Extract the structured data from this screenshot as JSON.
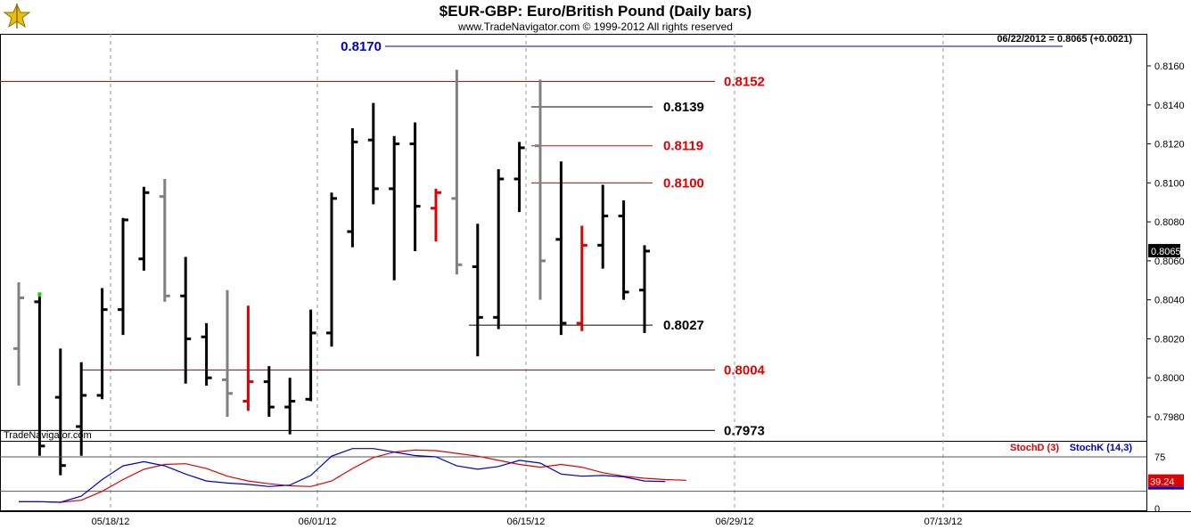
{
  "header": {
    "title": "$EUR-GBP:  Euro/British Pound  (Daily bars)",
    "subtitle": "www.TradeNavigator.com © 1999-2012 All rights reserved",
    "last_readout": "06/22/2012 = 0.8065 (+0.0021)",
    "watermark": "TradeNavigator.com"
  },
  "colors": {
    "up": "#000000",
    "neutral": "#808080",
    "down": "#e00000",
    "stoch_d": "#e00000",
    "stoch_k": "#0000c8",
    "level_blue": "#0000c8"
  },
  "chart_data": [
    {
      "type": "ohlc",
      "x_dates": [
        "05/18/12",
        "06/01/12",
        "06/15/12",
        "06/29/12",
        "07/13/12"
      ],
      "ylim": [
        0.797,
        0.817
      ],
      "y_ticks": [
        "0.7980",
        "0.8000",
        "0.8020",
        "0.8040",
        "0.8060",
        "0.8080",
        "0.8100",
        "0.8120",
        "0.8140",
        "0.8160"
      ],
      "last_price_label": "0.8065",
      "bars": [
        {
          "o": 0.8015,
          "h": 0.8049,
          "l": 0.7996,
          "c": 0.8041,
          "color": "neutral"
        },
        {
          "o": 0.8039,
          "h": 0.8042,
          "l": 0.796,
          "c": 0.7965,
          "color": "up"
        },
        {
          "o": 0.799,
          "h": 0.8015,
          "l": 0.795,
          "c": 0.7955,
          "color": "up"
        },
        {
          "o": 0.7975,
          "h": 0.8008,
          "l": 0.796,
          "c": 0.7991,
          "color": "up"
        },
        {
          "o": 0.7991,
          "h": 0.8046,
          "l": 0.7989,
          "c": 0.8035,
          "color": "up"
        },
        {
          "o": 0.8035,
          "h": 0.8082,
          "l": 0.8022,
          "c": 0.8081,
          "color": "up"
        },
        {
          "o": 0.8061,
          "h": 0.8098,
          "l": 0.8055,
          "c": 0.8095,
          "color": "up"
        },
        {
          "o": 0.8093,
          "h": 0.8102,
          "l": 0.8039,
          "c": 0.8042,
          "color": "neutral"
        },
        {
          "o": 0.8042,
          "h": 0.8062,
          "l": 0.7997,
          "c": 0.802,
          "color": "up"
        },
        {
          "o": 0.8021,
          "h": 0.8028,
          "l": 0.7996,
          "c": 0.8,
          "color": "up"
        },
        {
          "o": 0.7999,
          "h": 0.8045,
          "l": 0.798,
          "c": 0.7992,
          "color": "neutral"
        },
        {
          "o": 0.7988,
          "h": 0.8037,
          "l": 0.7983,
          "c": 0.7998,
          "color": "down"
        },
        {
          "o": 0.7998,
          "h": 0.8006,
          "l": 0.798,
          "c": 0.7985,
          "color": "up"
        },
        {
          "o": 0.7985,
          "h": 0.8,
          "l": 0.7971,
          "c": 0.7988,
          "color": "up"
        },
        {
          "o": 0.7989,
          "h": 0.8035,
          "l": 0.7988,
          "c": 0.8023,
          "color": "up"
        },
        {
          "o": 0.8023,
          "h": 0.8095,
          "l": 0.8016,
          "c": 0.8092,
          "color": "up"
        },
        {
          "o": 0.8075,
          "h": 0.8128,
          "l": 0.8067,
          "c": 0.8121,
          "color": "up"
        },
        {
          "o": 0.8122,
          "h": 0.8141,
          "l": 0.8089,
          "c": 0.8097,
          "color": "up"
        },
        {
          "o": 0.8097,
          "h": 0.8124,
          "l": 0.805,
          "c": 0.812,
          "color": "up"
        },
        {
          "o": 0.812,
          "h": 0.8131,
          "l": 0.8065,
          "c": 0.8088,
          "color": "up"
        },
        {
          "o": 0.8087,
          "h": 0.8097,
          "l": 0.807,
          "c": 0.8095,
          "color": "down"
        },
        {
          "o": 0.8092,
          "h": 0.8158,
          "l": 0.8053,
          "c": 0.8058,
          "color": "neutral"
        },
        {
          "o": 0.8057,
          "h": 0.8079,
          "l": 0.8011,
          "c": 0.8031,
          "color": "up"
        },
        {
          "o": 0.8031,
          "h": 0.8107,
          "l": 0.8025,
          "c": 0.8102,
          "color": "up"
        },
        {
          "o": 0.8102,
          "h": 0.8121,
          "l": 0.8085,
          "c": 0.8118,
          "color": "up"
        },
        {
          "o": 0.8119,
          "h": 0.8153,
          "l": 0.804,
          "c": 0.806,
          "color": "neutral"
        },
        {
          "o": 0.8071,
          "h": 0.8111,
          "l": 0.8022,
          "c": 0.8028,
          "color": "up"
        },
        {
          "o": 0.8028,
          "h": 0.8078,
          "l": 0.8024,
          "c": 0.8068,
          "color": "down"
        },
        {
          "o": 0.8068,
          "h": 0.8099,
          "l": 0.8056,
          "c": 0.8083,
          "color": "up"
        },
        {
          "o": 0.8083,
          "h": 0.8091,
          "l": 0.804,
          "c": 0.8044,
          "color": "up"
        },
        {
          "o": 0.8045,
          "h": 0.8068,
          "l": 0.8023,
          "c": 0.8065,
          "color": "up"
        }
      ],
      "levels": [
        {
          "label": "0.8170",
          "value": 0.817,
          "color": "blue",
          "label_side": "left"
        },
        {
          "label": "0.8152",
          "value": 0.8152,
          "color": "red",
          "label_side": "right"
        },
        {
          "label": "0.8139",
          "value": 0.8139,
          "color": "black",
          "label_side": "right"
        },
        {
          "label": "0.8119",
          "value": 0.8119,
          "color": "red",
          "label_side": "right"
        },
        {
          "label": "0.8100",
          "value": 0.81,
          "color": "red",
          "label_side": "right"
        },
        {
          "label": "0.8027",
          "value": 0.8027,
          "color": "black",
          "label_side": "right"
        },
        {
          "label": "0.8004",
          "value": 0.8004,
          "color": "red",
          "label_side": "right"
        },
        {
          "label": "0.7973",
          "value": 0.7973,
          "color": "black",
          "label_side": "right"
        }
      ]
    },
    {
      "type": "line",
      "ylim": [
        0,
        100
      ],
      "y_ticks": [
        "75",
        "0"
      ],
      "reference_lines": [
        75,
        25
      ],
      "legend": [
        "StochD (3)",
        "StochK (14,3)"
      ],
      "last_value_label": "39.24",
      "series": [
        {
          "name": "StochD (3)",
          "values": [
            10,
            10,
            9,
            12,
            25,
            42,
            57,
            64,
            65,
            58,
            47,
            40,
            36,
            33,
            32,
            40,
            58,
            74,
            82,
            85,
            84,
            80,
            76,
            70,
            64,
            60,
            64,
            60,
            52,
            47,
            44,
            42,
            41
          ]
        },
        {
          "name": "StochK (14,3)",
          "values": [
            10,
            10,
            9,
            18,
            42,
            62,
            68,
            62,
            50,
            40,
            37,
            35,
            32,
            34,
            48,
            76,
            87,
            87,
            82,
            77,
            75,
            62,
            57,
            61,
            70,
            66,
            50,
            47,
            48,
            46,
            40,
            39.24
          ]
        }
      ]
    }
  ]
}
